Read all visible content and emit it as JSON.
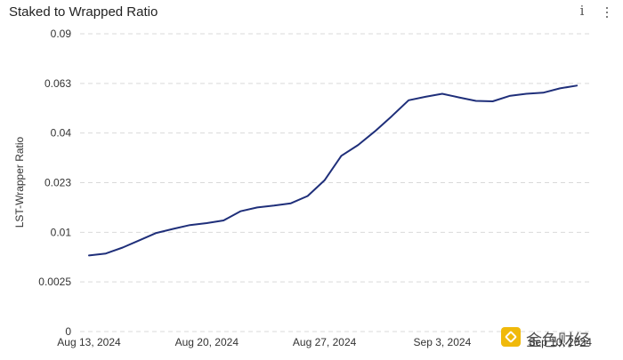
{
  "chart_title": "Staked to Wrapped Ratio",
  "icons": {
    "info": "info-icon",
    "more": "more-vertical-icon"
  },
  "watermark": {
    "text": "金色财经",
    "logo": "binance-square-logo"
  },
  "colors": {
    "line": "#1f2f7a",
    "grid": "#d9d9d9",
    "axis_text": "#333333"
  },
  "chart_data": {
    "type": "line",
    "title": "Staked to Wrapped Ratio",
    "xlabel": "",
    "ylabel": "LST-Wrapper Ratio",
    "y_ticks": [
      "0",
      "0.0025",
      "0.01",
      "0.023",
      "0.04",
      "0.063",
      "0.09"
    ],
    "x_ticks": [
      "Aug 13, 2024",
      "Aug 20, 2024",
      "Aug 27, 2024",
      "Sep 3, 2024",
      "Sep 10, 2024"
    ],
    "grid": true,
    "series": [
      {
        "values": [
          {
            "x": "2024-08-13",
            "y": 0.0065
          },
          {
            "x": "2024-08-14",
            "y": 0.0068
          },
          {
            "x": "2024-08-15",
            "y": 0.0077
          },
          {
            "x": "2024-08-16",
            "y": 0.0088
          },
          {
            "x": "2024-08-17",
            "y": 0.0099
          },
          {
            "x": "2024-08-18",
            "y": 0.0109
          },
          {
            "x": "2024-08-19",
            "y": 0.0119
          },
          {
            "x": "2024-08-20",
            "y": 0.0124
          },
          {
            "x": "2024-08-21",
            "y": 0.0131
          },
          {
            "x": "2024-08-22",
            "y": 0.0155
          },
          {
            "x": "2024-08-23",
            "y": 0.0165
          },
          {
            "x": "2024-08-24",
            "y": 0.017
          },
          {
            "x": "2024-08-25",
            "y": 0.0176
          },
          {
            "x": "2024-08-26",
            "y": 0.0195
          },
          {
            "x": "2024-08-27",
            "y": 0.0238
          },
          {
            "x": "2024-08-28",
            "y": 0.0322
          },
          {
            "x": "2024-08-29",
            "y": 0.0359
          },
          {
            "x": "2024-08-30",
            "y": 0.0408
          },
          {
            "x": "2024-08-31",
            "y": 0.0478
          },
          {
            "x": "2024-09-01",
            "y": 0.0552
          },
          {
            "x": "2024-09-02",
            "y": 0.0568
          },
          {
            "x": "2024-09-03",
            "y": 0.0582
          },
          {
            "x": "2024-09-04",
            "y": 0.0565
          },
          {
            "x": "2024-09-05",
            "y": 0.0549
          },
          {
            "x": "2024-09-06",
            "y": 0.0547
          },
          {
            "x": "2024-09-07",
            "y": 0.0572
          },
          {
            "x": "2024-09-08",
            "y": 0.0582
          },
          {
            "x": "2024-09-09",
            "y": 0.0587
          },
          {
            "x": "2024-09-10",
            "y": 0.0607
          },
          {
            "x": "2024-09-11",
            "y": 0.062
          }
        ]
      }
    ]
  }
}
